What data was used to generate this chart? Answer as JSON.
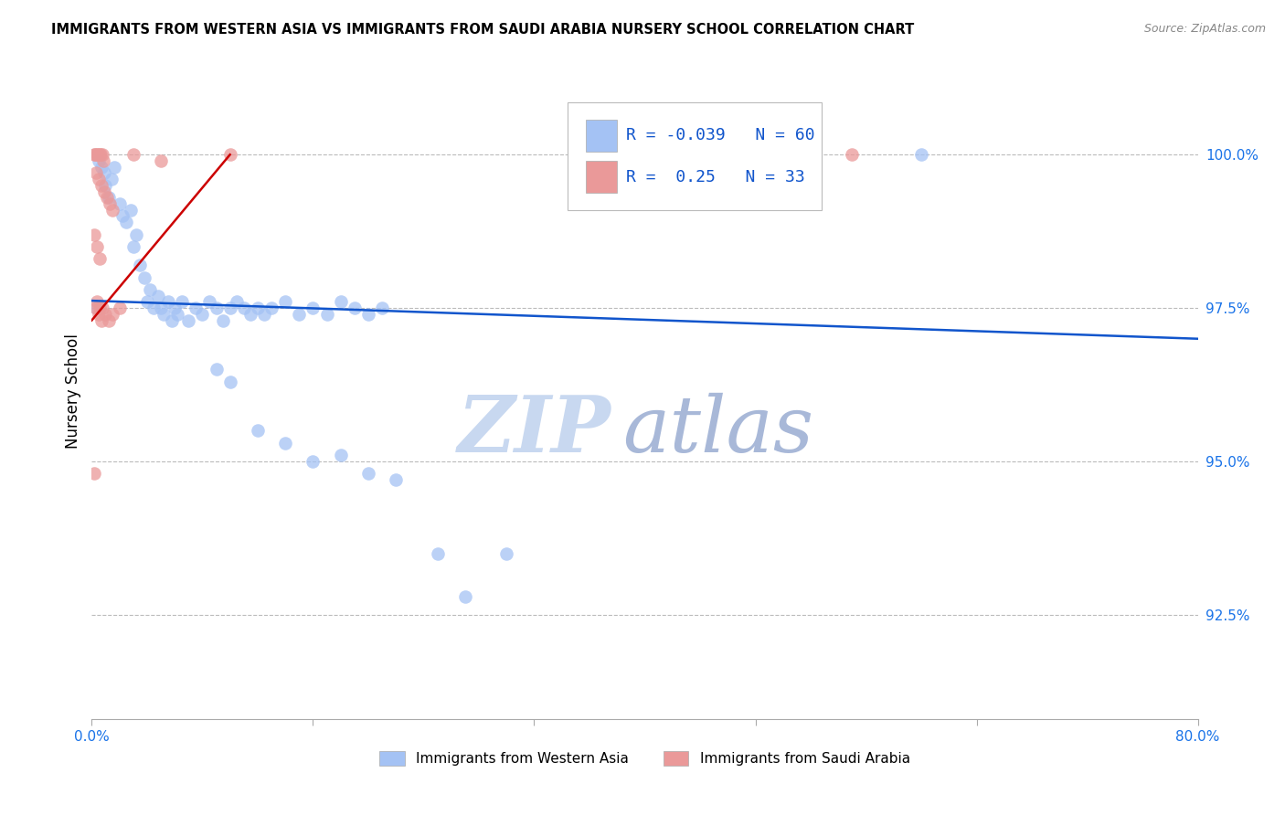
{
  "title": "IMMIGRANTS FROM WESTERN ASIA VS IMMIGRANTS FROM SAUDI ARABIA NURSERY SCHOOL CORRELATION CHART",
  "source": "Source: ZipAtlas.com",
  "ylabel": "Nursery School",
  "ytick_labels": [
    "100.0%",
    "97.5%",
    "95.0%",
    "92.5%"
  ],
  "ytick_values": [
    100.0,
    97.5,
    95.0,
    92.5
  ],
  "xlim": [
    0.0,
    80.0
  ],
  "ylim": [
    90.8,
    101.5
  ],
  "legend_blue_label": "Immigrants from Western Asia",
  "legend_pink_label": "Immigrants from Saudi Arabia",
  "R_blue": -0.039,
  "N_blue": 60,
  "R_pink": 0.25,
  "N_pink": 33,
  "blue_color": "#a4c2f4",
  "pink_color": "#ea9999",
  "blue_line_color": "#1155cc",
  "pink_line_color": "#cc0000",
  "watermark_zip": "ZIP",
  "watermark_atlas": "atlas",
  "blue_line": [
    [
      0.0,
      97.62
    ],
    [
      80.0,
      97.0
    ]
  ],
  "pink_line": [
    [
      0.0,
      97.3
    ],
    [
      10.0,
      100.0
    ]
  ],
  "blue_dots": [
    [
      0.3,
      97.5
    ],
    [
      0.5,
      99.9
    ],
    [
      0.7,
      99.8
    ],
    [
      0.9,
      99.7
    ],
    [
      1.0,
      99.5
    ],
    [
      1.2,
      99.3
    ],
    [
      1.4,
      99.6
    ],
    [
      1.6,
      99.8
    ],
    [
      2.0,
      99.2
    ],
    [
      2.2,
      99.0
    ],
    [
      2.5,
      98.9
    ],
    [
      2.8,
      99.1
    ],
    [
      3.0,
      98.5
    ],
    [
      3.2,
      98.7
    ],
    [
      3.5,
      98.2
    ],
    [
      3.8,
      98.0
    ],
    [
      4.0,
      97.6
    ],
    [
      4.2,
      97.8
    ],
    [
      4.5,
      97.5
    ],
    [
      4.8,
      97.7
    ],
    [
      5.0,
      97.5
    ],
    [
      5.2,
      97.4
    ],
    [
      5.5,
      97.6
    ],
    [
      5.8,
      97.3
    ],
    [
      6.0,
      97.5
    ],
    [
      6.2,
      97.4
    ],
    [
      6.5,
      97.6
    ],
    [
      7.0,
      97.3
    ],
    [
      7.5,
      97.5
    ],
    [
      8.0,
      97.4
    ],
    [
      8.5,
      97.6
    ],
    [
      9.0,
      97.5
    ],
    [
      9.5,
      97.3
    ],
    [
      10.0,
      97.5
    ],
    [
      10.5,
      97.6
    ],
    [
      11.0,
      97.5
    ],
    [
      11.5,
      97.4
    ],
    [
      12.0,
      97.5
    ],
    [
      12.5,
      97.4
    ],
    [
      13.0,
      97.5
    ],
    [
      14.0,
      97.6
    ],
    [
      15.0,
      97.4
    ],
    [
      16.0,
      97.5
    ],
    [
      17.0,
      97.4
    ],
    [
      18.0,
      97.6
    ],
    [
      19.0,
      97.5
    ],
    [
      20.0,
      97.4
    ],
    [
      21.0,
      97.5
    ],
    [
      9.0,
      96.5
    ],
    [
      10.0,
      96.3
    ],
    [
      12.0,
      95.5
    ],
    [
      14.0,
      95.3
    ],
    [
      16.0,
      95.0
    ],
    [
      18.0,
      95.1
    ],
    [
      20.0,
      94.8
    ],
    [
      22.0,
      94.7
    ],
    [
      25.0,
      93.5
    ],
    [
      27.0,
      92.8
    ],
    [
      30.0,
      93.5
    ],
    [
      60.0,
      100.0
    ]
  ],
  "pink_dots": [
    [
      0.15,
      100.0
    ],
    [
      0.25,
      100.0
    ],
    [
      0.35,
      100.0
    ],
    [
      0.45,
      100.0
    ],
    [
      0.55,
      100.0
    ],
    [
      0.65,
      100.0
    ],
    [
      0.75,
      100.0
    ],
    [
      0.85,
      99.9
    ],
    [
      0.3,
      99.7
    ],
    [
      0.5,
      99.6
    ],
    [
      0.7,
      99.5
    ],
    [
      0.9,
      99.4
    ],
    [
      1.1,
      99.3
    ],
    [
      1.3,
      99.2
    ],
    [
      1.5,
      99.1
    ],
    [
      0.2,
      98.7
    ],
    [
      0.4,
      98.5
    ],
    [
      0.6,
      98.3
    ],
    [
      0.3,
      97.5
    ],
    [
      0.5,
      97.4
    ],
    [
      0.7,
      97.3
    ],
    [
      0.8,
      97.5
    ],
    [
      1.0,
      97.4
    ],
    [
      1.2,
      97.3
    ],
    [
      0.4,
      97.6
    ],
    [
      0.6,
      97.5
    ],
    [
      1.5,
      97.4
    ],
    [
      2.0,
      97.5
    ],
    [
      0.2,
      94.8
    ],
    [
      3.0,
      100.0
    ],
    [
      5.0,
      99.9
    ],
    [
      10.0,
      100.0
    ],
    [
      55.0,
      100.0
    ]
  ]
}
